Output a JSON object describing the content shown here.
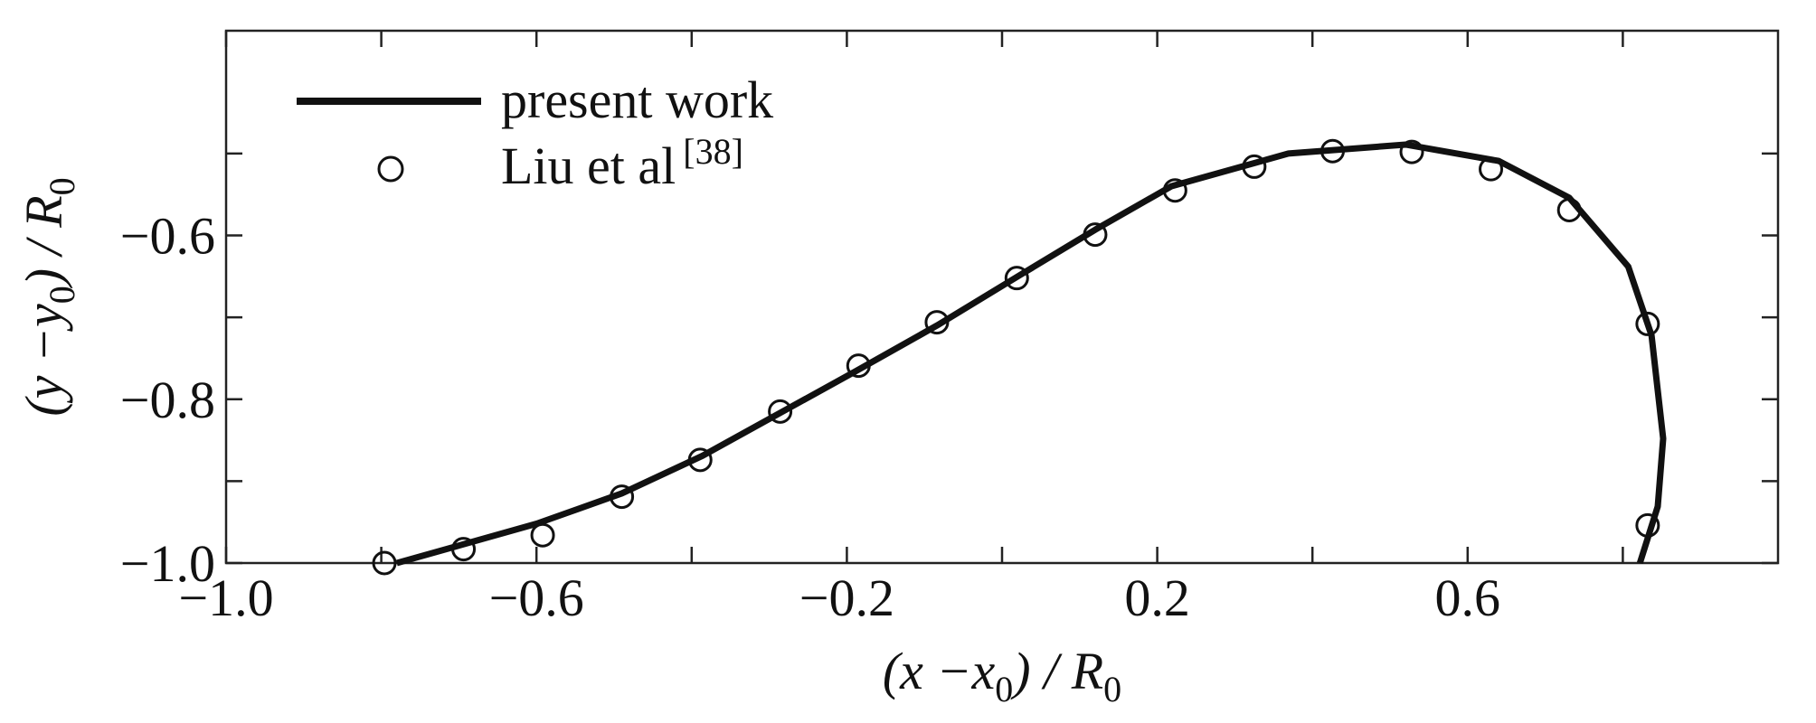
{
  "chart_data": {
    "type": "line",
    "xlabel": [
      "(x −x",
      "0",
      ") / R",
      "0"
    ],
    "ylabel": [
      "(y −y",
      "0",
      ") / R",
      "0"
    ],
    "xlim": [
      -1.0,
      1.0
    ],
    "ylim": [
      -1.0,
      -0.35
    ],
    "xticks": [
      {
        "value": -1.0,
        "label": "−1.0"
      },
      {
        "value": -0.6,
        "label": "−0.6"
      },
      {
        "value": -0.2,
        "label": "−0.2"
      },
      {
        "value": 0.2,
        "label": "0.2"
      },
      {
        "value": 0.6,
        "label": "0.6"
      }
    ],
    "xminor": [
      -0.8,
      -0.4,
      0,
      0.4,
      0.8
    ],
    "yticks": [
      {
        "value": -1.0,
        "label": "−1.0"
      },
      {
        "value": -0.8,
        "label": "−0.8"
      },
      {
        "value": -0.6,
        "label": "−0.6"
      }
    ],
    "yminor": [
      -0.9,
      -0.7,
      -0.5
    ],
    "grid": false,
    "legend": "upper left",
    "series": [
      {
        "name": "present work",
        "mode": "line",
        "color": "#111111",
        "x": [
          -0.78,
          -0.6,
          -0.49,
          -0.386,
          -0.189,
          -0.084,
          0.022,
          0.12,
          0.218,
          0.369,
          0.52,
          0.64,
          0.731,
          0.807,
          0.837,
          0.852,
          0.845,
          0.822
        ],
        "y": [
          -1.0,
          -0.952,
          -0.915,
          -0.869,
          -0.766,
          -0.71,
          -0.649,
          -0.593,
          -0.54,
          -0.5,
          -0.489,
          -0.509,
          -0.554,
          -0.638,
          -0.722,
          -0.848,
          -0.931,
          -1.0
        ]
      },
      {
        "name": "Liu et al",
        "superscript": "[38]",
        "mode": "markers",
        "color": "#111111",
        "x": [
          -0.796,
          -0.694,
          -0.592,
          -0.49,
          -0.389,
          -0.286,
          -0.185,
          -0.084,
          0.019,
          0.12,
          0.223,
          0.325,
          0.426,
          0.528,
          0.63,
          0.731,
          0.832,
          0.832
        ],
        "y": [
          -1.0,
          -0.983,
          -0.966,
          -0.919,
          -0.874,
          -0.815,
          -0.759,
          -0.706,
          -0.652,
          -0.599,
          -0.545,
          -0.516,
          -0.497,
          -0.498,
          -0.519,
          -0.569,
          -0.708,
          -0.954
        ]
      }
    ]
  }
}
